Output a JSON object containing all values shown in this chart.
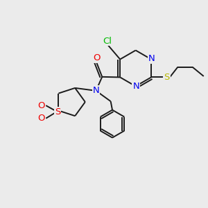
{
  "background_color": "#ebebeb",
  "bond_color": "#1a1a1a",
  "atom_colors": {
    "N": "#0000ee",
    "O": "#ee0000",
    "S_yellow": "#b8b800",
    "S_sulfonyl": "#ee0000",
    "Cl": "#00bb00",
    "C": "#1a1a1a"
  },
  "font_size": 8.5,
  "figsize": [
    3.0,
    3.0
  ],
  "dpi": 100
}
